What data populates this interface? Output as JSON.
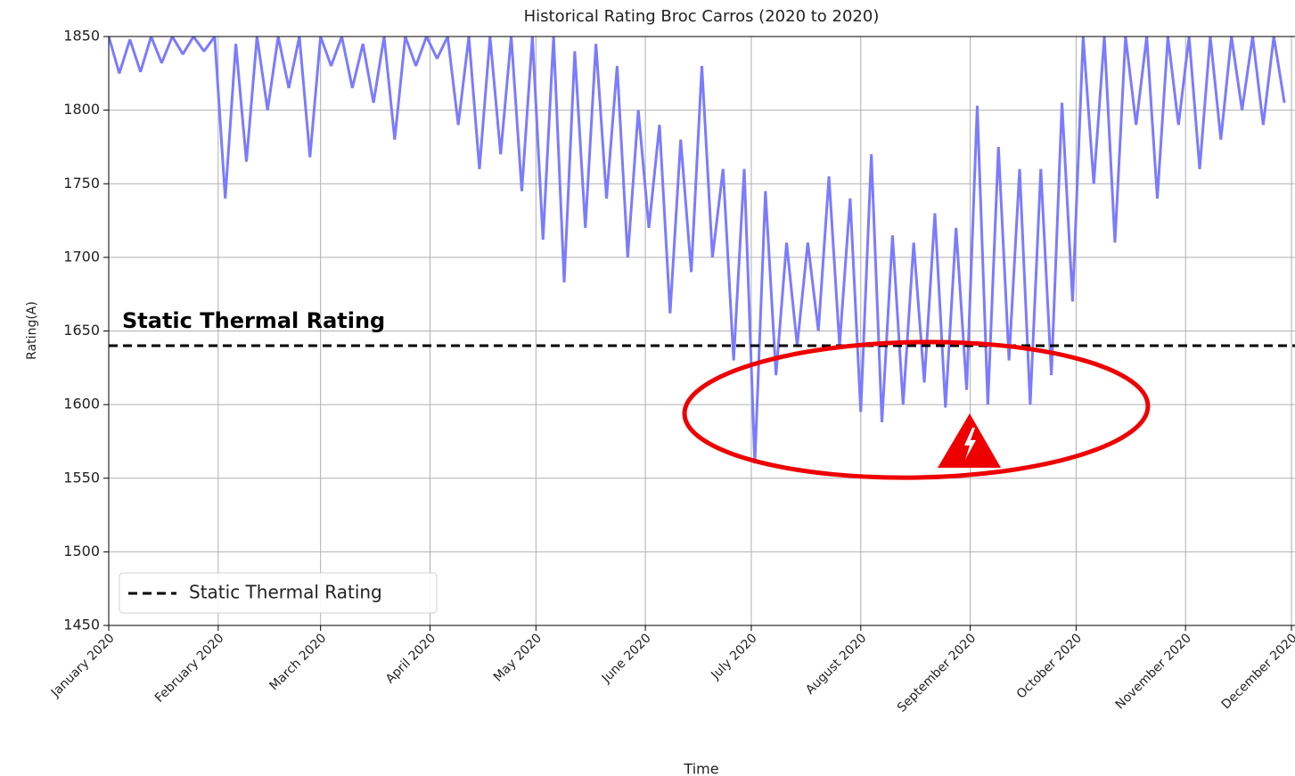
{
  "chart_data": {
    "type": "line",
    "title": "Historical Rating Broc Carros (2020 to 2020)",
    "x_label": "Time",
    "y_label": "Rating(A)",
    "x": [
      0,
      3,
      6,
      9,
      12,
      15,
      18,
      21,
      24,
      27,
      30,
      33,
      36,
      39,
      42,
      45,
      48,
      51,
      54,
      57,
      60,
      63,
      66,
      69,
      72,
      75,
      78,
      81,
      84,
      87,
      90,
      93,
      96,
      99,
      102,
      105,
      108,
      111,
      114,
      117,
      120,
      123,
      126,
      129,
      132,
      135,
      138,
      141,
      144,
      147,
      150,
      153,
      156,
      159,
      162,
      165,
      168,
      171,
      174,
      177,
      180,
      183,
      186,
      189,
      192,
      195,
      198,
      201,
      204,
      207,
      210,
      213,
      216,
      219,
      222,
      225,
      228,
      231,
      234,
      237,
      240,
      243,
      246,
      249,
      252,
      255,
      258,
      261,
      264,
      267,
      270,
      273,
      276,
      279,
      282,
      285,
      288,
      291,
      294,
      297,
      300,
      303,
      306,
      309,
      312,
      315,
      318,
      321,
      324,
      327,
      330,
      333
    ],
    "series": [
      {
        "color": "#7b7bff",
        "values": [
          1850,
          1825,
          1848,
          1826,
          1850,
          1832,
          1850,
          1838,
          1850,
          1840,
          1850,
          1740,
          1845,
          1765,
          1850,
          1800,
          1850,
          1815,
          1850,
          1768,
          1850,
          1830,
          1850,
          1815,
          1845,
          1805,
          1850,
          1780,
          1850,
          1830,
          1850,
          1835,
          1850,
          1790,
          1850,
          1760,
          1850,
          1770,
          1850,
          1745,
          1850,
          1712,
          1850,
          1683,
          1840,
          1720,
          1845,
          1740,
          1830,
          1700,
          1800,
          1720,
          1790,
          1662,
          1780,
          1690,
          1830,
          1700,
          1760,
          1630,
          1760,
          1560,
          1745,
          1620,
          1710,
          1640,
          1710,
          1650,
          1755,
          1640,
          1740,
          1595,
          1770,
          1588,
          1715,
          1600,
          1710,
          1615,
          1730,
          1598,
          1720,
          1610,
          1803,
          1600,
          1775,
          1630,
          1760,
          1600,
          1760,
          1620,
          1805,
          1670,
          1850,
          1750,
          1850,
          1710,
          1850,
          1790,
          1850,
          1740,
          1850,
          1790,
          1850,
          1760,
          1850,
          1780,
          1850,
          1800,
          1850,
          1790,
          1850,
          1805
        ]
      }
    ],
    "reference_line": {
      "name": "Static Thermal Rating",
      "value": 1640,
      "color": "#000000"
    },
    "annotations": [
      {
        "text": "Static Thermal Rating"
      }
    ],
    "xlim": [
      0,
      336
    ],
    "xticks": [
      {
        "value": 0,
        "label": "January 2020"
      },
      {
        "value": 31,
        "label": "February 2020"
      },
      {
        "value": 60,
        "label": "March 2020"
      },
      {
        "value": 91,
        "label": "April 2020"
      },
      {
        "value": 121,
        "label": "May 2020"
      },
      {
        "value": 152,
        "label": "June 2020"
      },
      {
        "value": 182,
        "label": "July 2020"
      },
      {
        "value": 213,
        "label": "August 2020"
      },
      {
        "value": 244,
        "label": "September 2020"
      },
      {
        "value": 274,
        "label": "October 2020"
      },
      {
        "value": 305,
        "label": "November 2020"
      },
      {
        "value": 335,
        "label": "December 2020"
      }
    ],
    "ylim": [
      1450,
      1850
    ],
    "yticks": [
      1450,
      1500,
      1550,
      1600,
      1650,
      1700,
      1750,
      1800,
      1850
    ],
    "grid": true,
    "legend": "lower left"
  }
}
